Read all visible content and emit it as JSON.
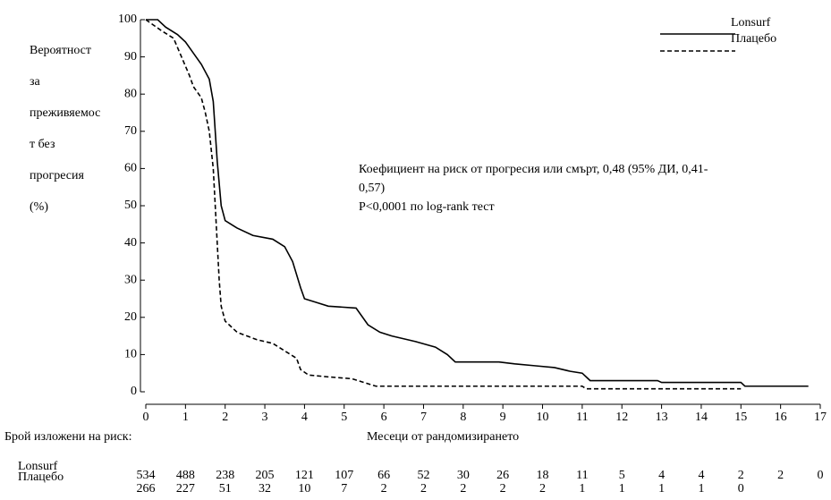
{
  "chart_data": {
    "type": "line",
    "y_label_lines": [
      "Вероятност",
      "за",
      "преживяемос",
      "т без",
      "прогресия",
      "(%)"
    ],
    "x_label": "Месеци от рандомизирането",
    "annotation_lines": [
      "Коефициент на риск от прогресия или смърт, 0,48 (95% ДИ, 0,41-",
      "0,57)",
      "P<0,0001 по log-rank тест"
    ],
    "xlim": [
      0,
      17
    ],
    "xticks": [
      0,
      1,
      2,
      3,
      4,
      5,
      6,
      7,
      8,
      9,
      10,
      11,
      12,
      13,
      14,
      15,
      16,
      17
    ],
    "ylim": [
      0,
      100
    ],
    "yticks": [
      0,
      10,
      20,
      30,
      40,
      50,
      60,
      70,
      80,
      90,
      100
    ],
    "legend_position": "upper right",
    "series": [
      {
        "name": "Lonsurf",
        "color": "#000000",
        "line_style": "solid",
        "x": [
          0,
          0.3,
          0.5,
          0.8,
          1.0,
          1.2,
          1.4,
          1.6,
          1.7,
          1.8,
          1.9,
          2.0,
          2.3,
          2.7,
          3.2,
          3.5,
          3.7,
          3.9,
          4.0,
          4.3,
          4.6,
          5.3,
          5.6,
          5.9,
          6.2,
          6.8,
          7.3,
          7.6,
          7.8,
          8.9,
          9.3,
          9.8,
          10.3,
          10.7,
          11.0,
          11.2,
          12.9,
          13.0,
          15.0,
          15.1,
          16.7
        ],
        "values": [
          100,
          100,
          98,
          96,
          94,
          91,
          88,
          84,
          78,
          62,
          50,
          46,
          44,
          42,
          41,
          39,
          35,
          28,
          25,
          24,
          23,
          22.5,
          18,
          16,
          15,
          13.5,
          12,
          10,
          8,
          8,
          7.5,
          7,
          6.5,
          5.5,
          5,
          3,
          3,
          2.5,
          2.5,
          1.5,
          1.5
        ]
      },
      {
        "name": "Плацебо",
        "color": "#000000",
        "line_style": "dashed",
        "x": [
          0,
          0.4,
          0.7,
          0.9,
          1.1,
          1.2,
          1.4,
          1.5,
          1.6,
          1.7,
          1.75,
          1.8,
          1.85,
          1.9,
          2.0,
          2.3,
          2.8,
          3.2,
          3.5,
          3.8,
          3.9,
          4.1,
          4.6,
          5.2,
          5.5,
          5.8,
          6.5,
          11.0,
          11.1,
          15.0
        ],
        "values": [
          100,
          97,
          95,
          90,
          85,
          82,
          79,
          75,
          70,
          60,
          50,
          40,
          30,
          23,
          19,
          16,
          14,
          13,
          11,
          9,
          6,
          4.5,
          4,
          3.5,
          2.5,
          1.5,
          1.5,
          1.5,
          0.8,
          0.8
        ]
      }
    ],
    "at_risk": {
      "title": "Брой изложени на риск:",
      "rows": [
        {
          "name": "Lonsurf",
          "values": [
            534,
            488,
            238,
            205,
            121,
            107,
            66,
            52,
            30,
            26,
            18,
            11,
            5,
            4,
            4,
            2,
            2,
            0
          ]
        },
        {
          "name": "Плацебо",
          "values": [
            266,
            227,
            51,
            32,
            10,
            7,
            2,
            2,
            2,
            2,
            2,
            1,
            1,
            1,
            1,
            0
          ]
        }
      ]
    }
  }
}
